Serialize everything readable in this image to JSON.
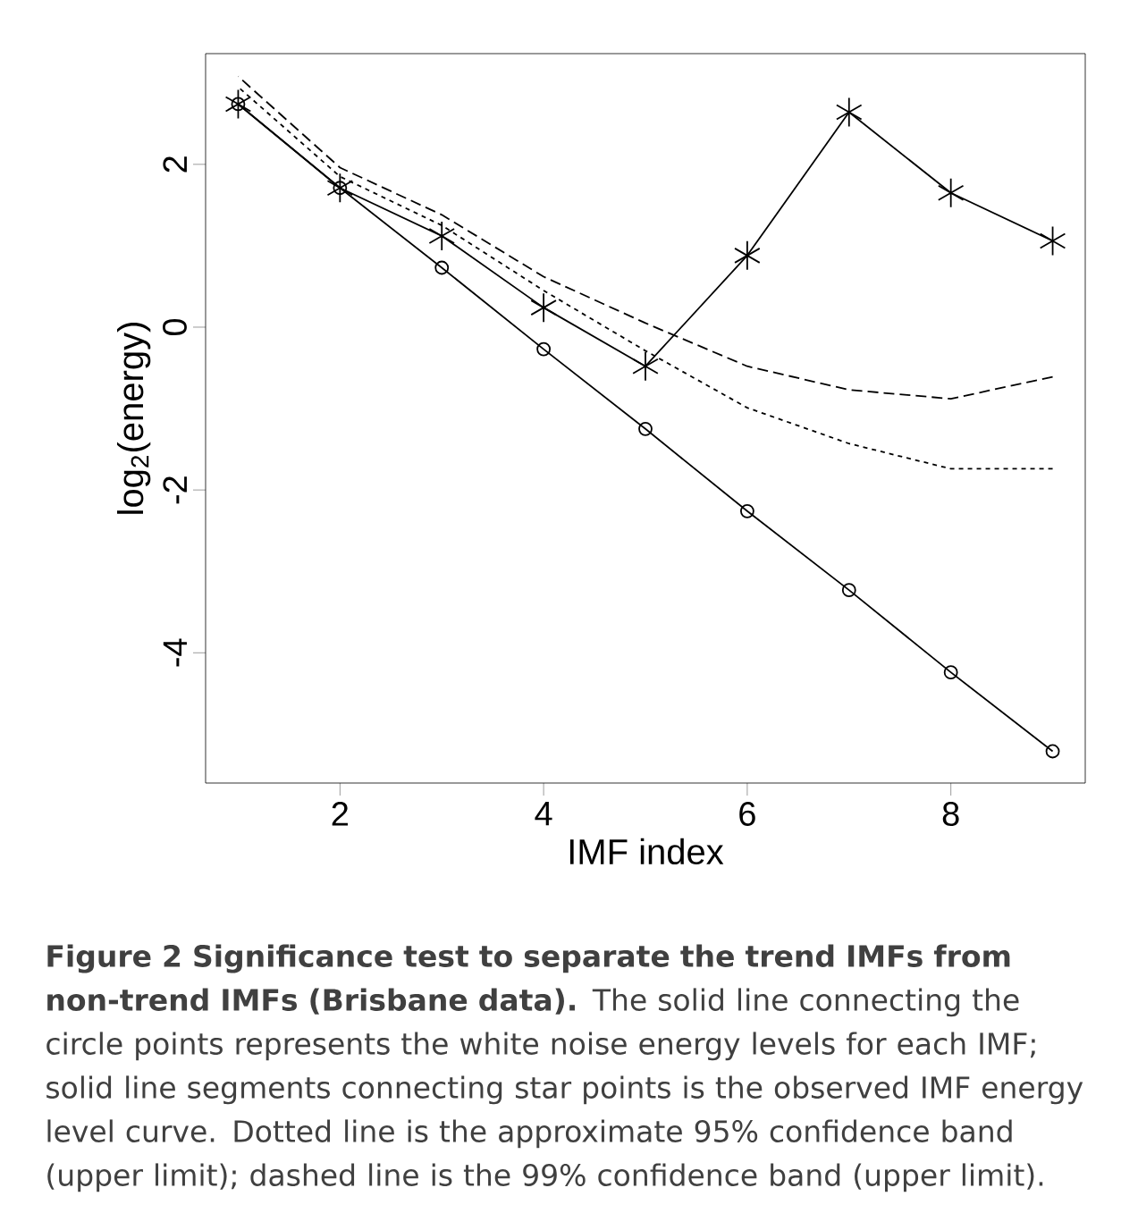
{
  "chart_data": {
    "type": "line",
    "xlabel": "IMF index",
    "ylabel": "log$_{2}$(energy)",
    "x": [
      1,
      2,
      3,
      4,
      5,
      6,
      7,
      8,
      9
    ],
    "xlim": [
      0.68,
      9.32
    ],
    "ylim": [
      -5.6,
      3.36
    ],
    "xticks": [
      2,
      4,
      6,
      8
    ],
    "yticks": [
      -4,
      -2,
      0,
      2
    ],
    "grid": false,
    "series": [
      {
        "color": "#000000",
        "marker": "circle",
        "line_style": "solid",
        "values": [
          2.74,
          1.71,
          0.73,
          -0.27,
          -1.25,
          -2.26,
          -3.23,
          -4.24,
          -5.21
        ]
      },
      {
        "color": "#000000",
        "marker": "cross",
        "line_style": "solid",
        "values": [
          2.74,
          1.71,
          1.12,
          0.24,
          -0.48,
          0.88,
          2.64,
          1.65,
          1.06
        ]
      },
      {
        "color": "#000000",
        "marker": "none",
        "line_style": "dotted",
        "values": [
          2.95,
          1.85,
          1.25,
          0.45,
          -0.29,
          -0.99,
          -1.43,
          -1.74,
          -1.74
        ]
      },
      {
        "color": "#000000",
        "marker": "none",
        "line_style": "dashed",
        "values": [
          3.08,
          1.96,
          1.38,
          0.62,
          0.05,
          -0.48,
          -0.77,
          -0.88,
          -0.61
        ]
      }
    ],
    "annotations": [
      "**Figure 2 Significance test to separate the trend IMFs from non-trend IMFs (Brisbane data).** The solid line connecting the circle points represents the white noise energy levels for each IMF; solid line segments connecting star points is the observed IMF energy level curve. Dotted line is the approximate 95% confidence band (upper limit); dashed line is the 99% confidence band (upper limit)."
    ]
  }
}
